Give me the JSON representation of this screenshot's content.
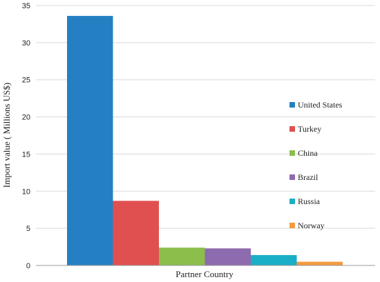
{
  "chart_data": {
    "type": "bar",
    "categories": [
      "Partner Country"
    ],
    "series": [
      {
        "name": "United States",
        "values": [
          33.6
        ],
        "color": "#2580C3"
      },
      {
        "name": "Turkey",
        "values": [
          8.7
        ],
        "color": "#E15050"
      },
      {
        "name": "China",
        "values": [
          2.4
        ],
        "color": "#8BBE4B"
      },
      {
        "name": "Brazil",
        "values": [
          2.3
        ],
        "color": "#8E6AAE"
      },
      {
        "name": "Russia",
        "values": [
          1.4
        ],
        "color": "#1AAFC6"
      },
      {
        "name": "Norway",
        "values": [
          0.5
        ],
        "color": "#F59A42"
      }
    ],
    "title": "",
    "xlabel": "Partner Country",
    "ylabel": "Import value ( Millions US$)",
    "ylim": [
      0,
      35
    ],
    "yticks": [
      0,
      5,
      10,
      15,
      20,
      25,
      30,
      35
    ],
    "grid": true,
    "legend": "right"
  }
}
